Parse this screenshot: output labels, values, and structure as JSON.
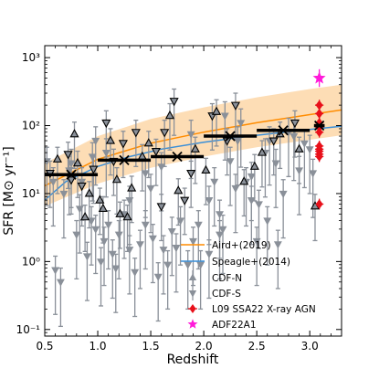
{
  "chart_data": {
    "type": "scatter",
    "xlabel": "Redshift",
    "ylabel": "SFR [M⊙ yr⁻¹]",
    "xlim": [
      0.5,
      3.3
    ],
    "ylim": [
      0.08,
      1500
    ],
    "yscale": "log",
    "x_ticks": [
      0.5,
      1.0,
      1.5,
      2.0,
      2.5,
      3.0
    ],
    "x_tick_labels": [
      "0.5",
      "1.0",
      "1.5",
      "2.0",
      "2.5",
      "3.0"
    ],
    "y_ticks": [
      0.1,
      1,
      10,
      100,
      1000
    ],
    "y_tick_labels": [
      "10⁻¹",
      "10⁰",
      "10¹",
      "10²",
      "10³"
    ],
    "grid": false,
    "legend_position": "lower-right",
    "colors": {
      "aird": "#ff8c00",
      "aird_band": "#fdd7a8",
      "speagle": "#3a8fd8",
      "cdf": "#8a9099",
      "l09": "#e8101a",
      "adf": "#ff1ad9",
      "bins": "#000000"
    },
    "series": [
      {
        "name": "Aird+(2019)",
        "kind": "line_band",
        "x": [
          0.5,
          1.0,
          1.5,
          2.0,
          2.5,
          3.0,
          3.3
        ],
        "y": [
          13,
          32,
          55,
          80,
          110,
          145,
          170
        ],
        "y_lo": [
          6.5,
          14,
          24,
          35,
          48,
          62,
          72
        ],
        "y_hi": [
          28,
          70,
          125,
          185,
          260,
          345,
          400
        ]
      },
      {
        "name": "Speagle+(2014)",
        "kind": "line",
        "x": [
          0.5,
          0.7,
          1.0,
          1.3,
          1.6,
          2.0,
          2.5,
          3.0,
          3.3
        ],
        "y": [
          8,
          15,
          25,
          35,
          45,
          57,
          72,
          88,
          98
        ]
      },
      {
        "name": "CDF-N",
        "kind": "triangle-up",
        "points": [
          [
            0.55,
            20,
            "d"
          ],
          [
            0.62,
            32,
            "u"
          ],
          [
            0.72,
            38,
            "d"
          ],
          [
            0.75,
            16,
            "d"
          ],
          [
            0.78,
            75,
            "u"
          ],
          [
            0.81,
            28,
            "u"
          ],
          [
            0.85,
            13,
            "d"
          ],
          [
            0.88,
            4.5,
            "u"
          ],
          [
            0.92,
            10,
            "u"
          ],
          [
            0.96,
            23,
            "d"
          ],
          [
            1.02,
            8,
            "u"
          ],
          [
            1.05,
            6,
            "u"
          ],
          [
            1.08,
            110,
            "d"
          ],
          [
            1.12,
            60,
            "u"
          ],
          [
            1.15,
            30,
            "d"
          ],
          [
            1.18,
            16,
            "u"
          ],
          [
            1.21,
            5,
            "u"
          ],
          [
            1.24,
            55,
            "d"
          ],
          [
            1.28,
            4.5,
            "u"
          ],
          [
            1.32,
            12,
            "u"
          ],
          [
            1.36,
            80,
            "d"
          ],
          [
            1.42,
            35,
            "u"
          ],
          [
            1.48,
            55,
            "u"
          ],
          [
            1.55,
            42,
            "d"
          ],
          [
            1.6,
            6.5,
            "d"
          ],
          [
            1.63,
            80,
            "d"
          ],
          [
            1.68,
            140,
            "u"
          ],
          [
            1.72,
            230,
            "d"
          ],
          [
            1.76,
            11,
            "u"
          ],
          [
            1.82,
            8,
            "d"
          ],
          [
            1.88,
            20,
            "d"
          ],
          [
            1.92,
            45,
            "u"
          ],
          [
            2.02,
            22,
            "u"
          ],
          [
            2.08,
            140,
            "d"
          ],
          [
            2.12,
            160,
            "u"
          ],
          [
            2.22,
            60,
            "d"
          ],
          [
            2.3,
            200,
            "d"
          ],
          [
            2.38,
            15,
            "u"
          ],
          [
            2.48,
            25,
            "u"
          ],
          [
            2.55,
            40,
            "u"
          ],
          [
            2.66,
            60,
            "d"
          ],
          [
            2.72,
            75,
            "u"
          ],
          [
            2.86,
            110,
            "d"
          ],
          [
            2.9,
            45,
            "u"
          ],
          [
            3.05,
            6.5,
            "u"
          ]
        ]
      },
      {
        "name": "CDF-S",
        "kind": "triangle-down",
        "points": [
          [
            0.6,
            0.75
          ],
          [
            0.65,
            0.5
          ],
          [
            0.52,
            30
          ],
          [
            0.58,
            15
          ],
          [
            0.68,
            10
          ],
          [
            0.73,
            22
          ],
          [
            0.8,
            2.5
          ],
          [
            0.83,
            6
          ],
          [
            0.9,
            1.2
          ],
          [
            0.94,
            4
          ],
          [
            0.98,
            3
          ],
          [
            1.03,
            1.0
          ],
          [
            1.06,
            2
          ],
          [
            1.1,
            3.5
          ],
          [
            1.14,
            1.3
          ],
          [
            1.17,
            0.8
          ],
          [
            1.2,
            2.5
          ],
          [
            1.25,
            5
          ],
          [
            1.3,
            1.5
          ],
          [
            1.35,
            0.7
          ],
          [
            1.4,
            1.8
          ],
          [
            1.45,
            3.5
          ],
          [
            1.52,
            2.2
          ],
          [
            1.57,
            0.6
          ],
          [
            1.62,
            1.5
          ],
          [
            1.66,
            0.9
          ],
          [
            1.7,
            2.8
          ],
          [
            1.74,
            1.6
          ],
          [
            1.78,
            4
          ],
          [
            1.85,
            0.9
          ],
          [
            1.9,
            2
          ],
          [
            1.95,
            3.5
          ],
          [
            2.05,
            8
          ],
          [
            2.1,
            15
          ],
          [
            2.15,
            5
          ],
          [
            2.18,
            3
          ],
          [
            2.25,
            30
          ],
          [
            2.32,
            60
          ],
          [
            2.4,
            15
          ],
          [
            2.45,
            8
          ],
          [
            2.52,
            7
          ],
          [
            2.58,
            40
          ],
          [
            2.62,
            60
          ],
          [
            2.68,
            28
          ],
          [
            2.75,
            10
          ],
          [
            2.8,
            80
          ],
          [
            2.85,
            70
          ],
          [
            2.95,
            55
          ],
          [
            3.0,
            45
          ],
          [
            3.03,
            20
          ],
          [
            2.35,
            110
          ],
          [
            2.2,
            140
          ],
          [
            1.88,
            75
          ],
          [
            1.5,
            12
          ],
          [
            1.3,
            8
          ],
          [
            0.98,
            60
          ],
          [
            0.85,
            15
          ],
          [
            0.75,
            28
          ],
          [
            1.08,
            40
          ],
          [
            2.5,
            2.0
          ],
          [
            2.6,
            4
          ],
          [
            2.7,
            1.8
          ],
          [
            2.05,
            1.3
          ],
          [
            2.15,
            2.5
          ],
          [
            1.97,
            0.9
          ],
          [
            2.9,
            22
          ],
          [
            2.45,
            18
          ],
          [
            1.6,
            25
          ],
          [
            1.45,
            20
          ],
          [
            0.95,
            35
          ],
          [
            2.3,
            12
          ]
        ]
      },
      {
        "name": "L09 SSA22 X-ray AGN",
        "kind": "diamond",
        "x_error": 0.04,
        "points": [
          [
            3.09,
            200
          ],
          [
            3.09,
            150
          ],
          [
            3.09,
            110
          ],
          [
            3.09,
            95
          ],
          [
            3.09,
            80
          ],
          [
            3.09,
            50
          ],
          [
            3.09,
            45
          ],
          [
            3.09,
            42
          ],
          [
            3.09,
            38
          ],
          [
            3.09,
            35
          ],
          [
            3.09,
            7
          ]
        ]
      },
      {
        "name": "ADF22A1",
        "kind": "star",
        "points": [
          [
            3.09,
            500
          ]
        ]
      }
    ],
    "binned_points": {
      "marker": "x",
      "points": [
        {
          "x": 0.75,
          "y": 19,
          "xerr": [
            0.5,
            1.0
          ]
        },
        {
          "x": 1.25,
          "y": 31,
          "xerr": [
            1.0,
            1.5
          ]
        },
        {
          "x": 1.75,
          "y": 35,
          "xerr": [
            1.5,
            2.0
          ]
        },
        {
          "x": 2.25,
          "y": 70,
          "xerr": [
            2.0,
            2.5
          ]
        },
        {
          "x": 2.75,
          "y": 85,
          "xerr": [
            2.5,
            3.0
          ]
        },
        {
          "x": 3.09,
          "y": 100,
          "xerr": [
            3.04,
            3.14
          ]
        }
      ]
    },
    "legend": [
      "Aird+(2019)",
      "Speagle+(2014)",
      "CDF-N",
      "CDF-S",
      "L09 SSA22 X-ray AGN",
      "ADF22A1"
    ]
  }
}
